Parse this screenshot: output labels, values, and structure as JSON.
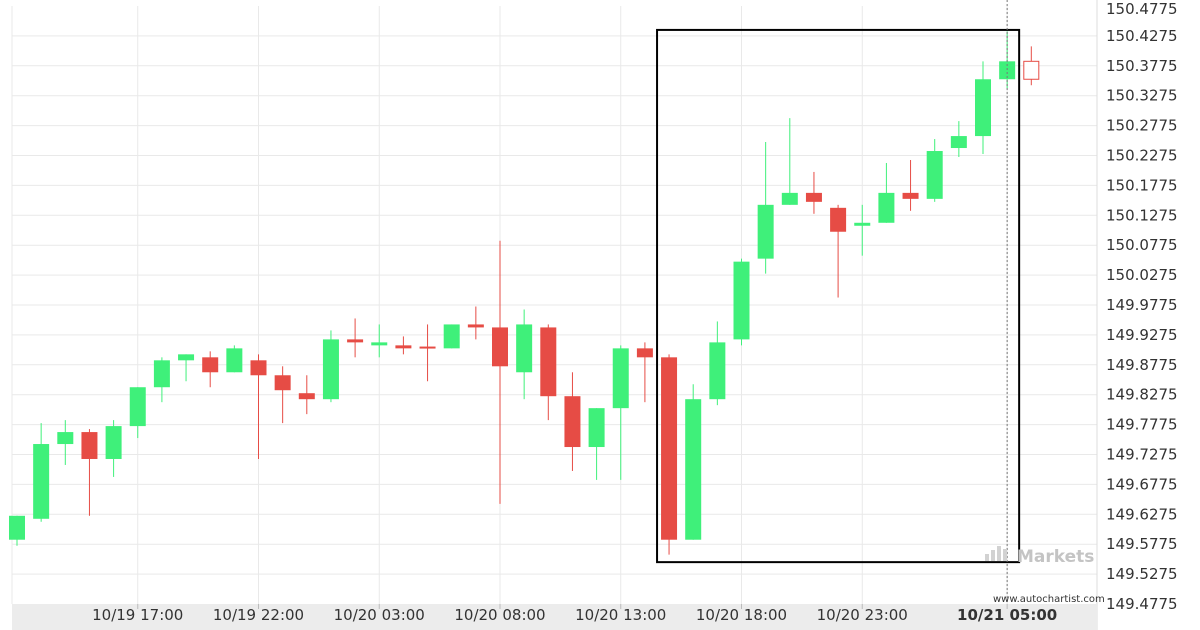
{
  "chart_data": {
    "type": "candlestick",
    "y_ticks": [
      "150.4775",
      "150.4275",
      "150.3775",
      "150.3275",
      "150.2775",
      "150.2275",
      "150.1775",
      "150.1275",
      "150.0775",
      "150.0275",
      "149.9775",
      "149.9275",
      "149.8775",
      "149.8275",
      "149.7775",
      "149.7275",
      "149.6775",
      "149.6275",
      "149.5775",
      "149.5275",
      "149.4775"
    ],
    "ylim": [
      149.4775,
      150.4775
    ],
    "x_ticks": [
      {
        "label": "10/19 17:00",
        "index": 5,
        "bold": false
      },
      {
        "label": "10/19 22:00",
        "index": 10,
        "bold": false
      },
      {
        "label": "10/20 03:00",
        "index": 15,
        "bold": false
      },
      {
        "label": "10/20 08:00",
        "index": 20,
        "bold": false
      },
      {
        "label": "10/20 13:00",
        "index": 25,
        "bold": false
      },
      {
        "label": "10/20 18:00",
        "index": 30,
        "bold": false
      },
      {
        "label": "10/20 23:00",
        "index": 35,
        "bold": false
      },
      {
        "label": "10/21 05:00",
        "index": 41,
        "bold": true
      }
    ],
    "candles": [
      {
        "o": 149.585,
        "h": 149.625,
        "l": 149.575,
        "c": 149.625
      },
      {
        "o": 149.62,
        "h": 149.78,
        "l": 149.615,
        "c": 149.745
      },
      {
        "o": 149.745,
        "h": 149.785,
        "l": 149.71,
        "c": 149.765
      },
      {
        "o": 149.765,
        "h": 149.77,
        "l": 149.625,
        "c": 149.72
      },
      {
        "o": 149.72,
        "h": 149.785,
        "l": 149.69,
        "c": 149.775
      },
      {
        "o": 149.775,
        "h": 149.84,
        "l": 149.755,
        "c": 149.84
      },
      {
        "o": 149.84,
        "h": 149.89,
        "l": 149.815,
        "c": 149.885
      },
      {
        "o": 149.885,
        "h": 149.895,
        "l": 149.85,
        "c": 149.895
      },
      {
        "o": 149.89,
        "h": 149.9,
        "l": 149.84,
        "c": 149.865
      },
      {
        "o": 149.865,
        "h": 149.91,
        "l": 149.865,
        "c": 149.905
      },
      {
        "o": 149.885,
        "h": 149.895,
        "l": 149.72,
        "c": 149.86
      },
      {
        "o": 149.86,
        "h": 149.875,
        "l": 149.78,
        "c": 149.835
      },
      {
        "o": 149.83,
        "h": 149.86,
        "l": 149.795,
        "c": 149.82
      },
      {
        "o": 149.82,
        "h": 149.935,
        "l": 149.815,
        "c": 149.92
      },
      {
        "o": 149.92,
        "h": 149.955,
        "l": 149.89,
        "c": 149.915
      },
      {
        "o": 149.91,
        "h": 149.945,
        "l": 149.89,
        "c": 149.915
      },
      {
        "o": 149.91,
        "h": 149.925,
        "l": 149.895,
        "c": 149.905
      },
      {
        "o": 149.908,
        "h": 149.945,
        "l": 149.85,
        "c": 149.906
      },
      {
        "o": 149.905,
        "h": 149.945,
        "l": 149.905,
        "c": 149.945
      },
      {
        "o": 149.945,
        "h": 149.975,
        "l": 149.92,
        "c": 149.94
      },
      {
        "o": 149.94,
        "h": 150.085,
        "l": 149.645,
        "c": 149.875
      },
      {
        "o": 149.865,
        "h": 149.97,
        "l": 149.82,
        "c": 149.945
      },
      {
        "o": 149.94,
        "h": 149.945,
        "l": 149.785,
        "c": 149.825
      },
      {
        "o": 149.825,
        "h": 149.865,
        "l": 149.7,
        "c": 149.74
      },
      {
        "o": 149.74,
        "h": 149.805,
        "l": 149.685,
        "c": 149.805
      },
      {
        "o": 149.805,
        "h": 149.91,
        "l": 149.685,
        "c": 149.905
      },
      {
        "o": 149.905,
        "h": 149.915,
        "l": 149.815,
        "c": 149.89
      },
      {
        "o": 149.89,
        "h": 149.895,
        "l": 149.56,
        "c": 149.585
      },
      {
        "o": 149.585,
        "h": 149.845,
        "l": 149.585,
        "c": 149.82
      },
      {
        "o": 149.82,
        "h": 149.95,
        "l": 149.81,
        "c": 149.915
      },
      {
        "o": 149.92,
        "h": 150.055,
        "l": 149.91,
        "c": 150.05
      },
      {
        "o": 150.055,
        "h": 150.25,
        "l": 150.03,
        "c": 150.145
      },
      {
        "o": 150.145,
        "h": 150.29,
        "l": 150.145,
        "c": 150.165
      },
      {
        "o": 150.165,
        "h": 150.2,
        "l": 150.13,
        "c": 150.15
      },
      {
        "o": 150.14,
        "h": 150.145,
        "l": 149.99,
        "c": 150.1
      },
      {
        "o": 150.11,
        "h": 150.145,
        "l": 150.06,
        "c": 150.115
      },
      {
        "o": 150.115,
        "h": 150.215,
        "l": 150.115,
        "c": 150.165
      },
      {
        "o": 150.165,
        "h": 150.22,
        "l": 150.135,
        "c": 150.155
      },
      {
        "o": 150.155,
        "h": 150.255,
        "l": 150.15,
        "c": 150.235
      },
      {
        "o": 150.24,
        "h": 150.285,
        "l": 150.225,
        "c": 150.26
      },
      {
        "o": 150.26,
        "h": 150.385,
        "l": 150.23,
        "c": 150.355
      },
      {
        "o": 150.355,
        "h": 150.435,
        "l": 150.34,
        "c": 150.385
      },
      {
        "o": 150.385,
        "h": 150.41,
        "l": 150.345,
        "c": 150.355,
        "hollow": true
      }
    ],
    "pattern_box": {
      "from_index": 27,
      "to_index": 41,
      "low": 149.5475,
      "high": 150.4375
    },
    "cursor_index": 41,
    "colors": {
      "up": "#3ff07a",
      "down": "#e64c45",
      "box": "#000000",
      "grid": "#e9e9e9",
      "axis_bg": "#ececec",
      "text": "#333333"
    }
  },
  "watermark": {
    "text": "Markets"
  },
  "source": {
    "text": "www.autochartist.com"
  }
}
